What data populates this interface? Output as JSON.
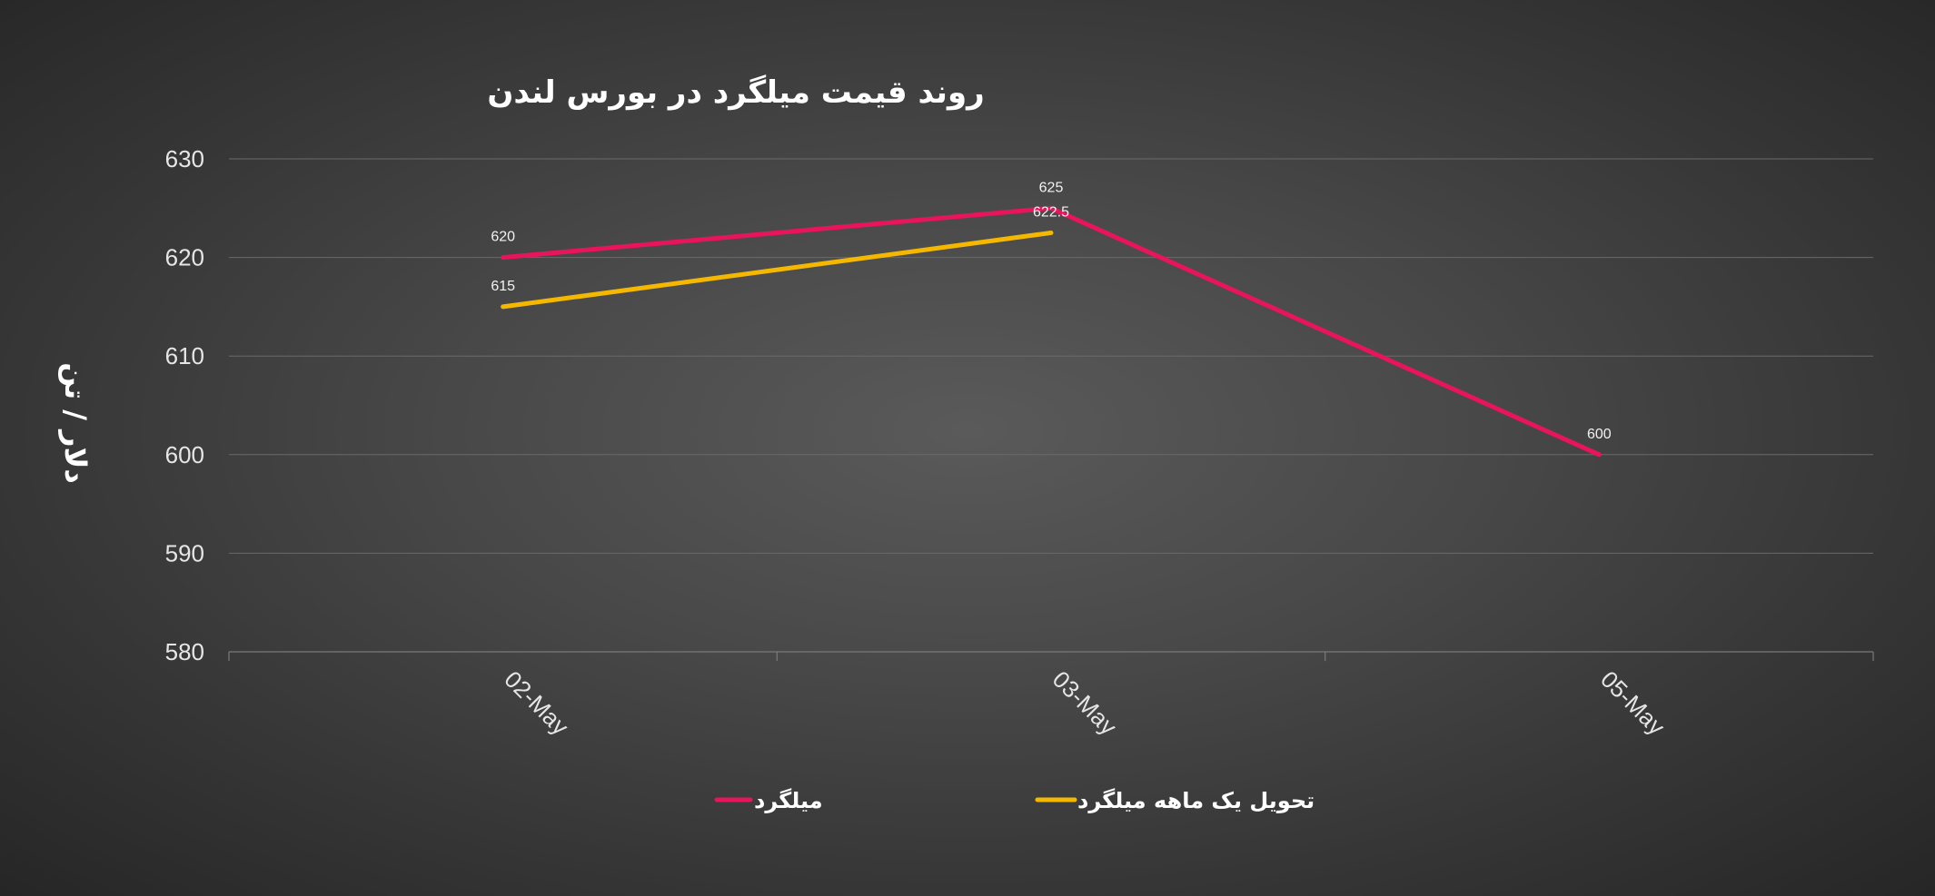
{
  "chart_data": {
    "type": "line",
    "title": "روند  قیمت میلگرد در بورس لندن",
    "xlabel": "",
    "ylabel": "دلار / تن",
    "categories": [
      "02-May",
      "03-May",
      "05-May"
    ],
    "ylim": [
      580,
      630
    ],
    "yticks": [
      580,
      590,
      600,
      610,
      620,
      630
    ],
    "grid": true,
    "legend_position": "bottom",
    "series": [
      {
        "name": "میلگرد",
        "color": "#e8145c",
        "values": [
          620,
          625,
          600
        ],
        "labels": [
          "620",
          "625",
          "600"
        ]
      },
      {
        "name": "تحویل یک ماهه میلگرد",
        "color": "#f5b800",
        "values": [
          615,
          622.5,
          null
        ],
        "labels": [
          "615",
          "622.5",
          ""
        ]
      }
    ]
  }
}
